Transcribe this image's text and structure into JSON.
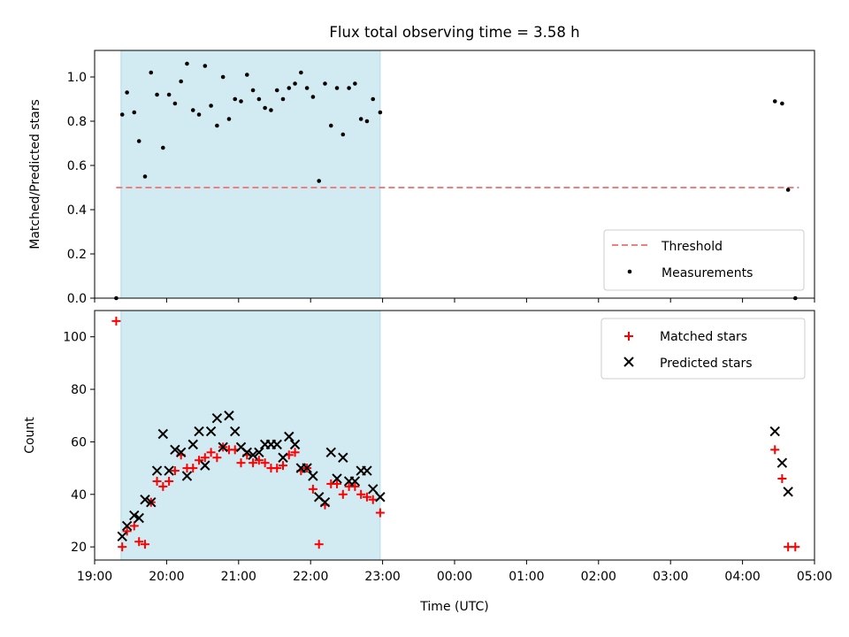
{
  "figure_title": "Flux total observing time = 3.58 h",
  "chart_data": [
    {
      "type": "scatter",
      "id": "ratio",
      "title": "Flux total observing time = 3.58 h",
      "ylabel": "Matched/Predicted stars",
      "xlabel": "",
      "x_unit": "hours since 00:00 UTC (values above 24 are next day)",
      "xlim": [
        "19:00",
        "05:00"
      ],
      "ylim": [
        0,
        1.12
      ],
      "yticks": [
        "0.0",
        "0.2",
        "0.4",
        "0.6",
        "0.8",
        "1.0"
      ],
      "x_tick_labels_shown": false,
      "grid": false,
      "legend_position": "lower right",
      "shaded_interval": {
        "from": "19:22",
        "to": "22:58",
        "color": "#add8e6"
      },
      "threshold": {
        "name": "Threshold",
        "value": 0.5,
        "from": "19:18",
        "to": "04:47",
        "style": "dashed",
        "color": "#f08080"
      },
      "series": [
        {
          "name": "Measurements",
          "marker": "point",
          "color": "#000000",
          "points": [
            [
              "19:18",
              0.0
            ],
            [
              "19:23",
              0.83
            ],
            [
              "19:27",
              0.93
            ],
            [
              "19:33",
              0.84
            ],
            [
              "19:37",
              0.71
            ],
            [
              "19:42",
              0.55
            ],
            [
              "19:47",
              1.02
            ],
            [
              "19:52",
              0.92
            ],
            [
              "19:57",
              0.68
            ],
            [
              "20:02",
              0.92
            ],
            [
              "20:07",
              0.88
            ],
            [
              "20:12",
              0.98
            ],
            [
              "20:17",
              1.06
            ],
            [
              "20:22",
              0.85
            ],
            [
              "20:27",
              0.83
            ],
            [
              "20:32",
              1.05
            ],
            [
              "20:37",
              0.87
            ],
            [
              "20:42",
              0.78
            ],
            [
              "20:47",
              1.0
            ],
            [
              "20:52",
              0.81
            ],
            [
              "20:57",
              0.9
            ],
            [
              "21:02",
              0.89
            ],
            [
              "21:07",
              1.01
            ],
            [
              "21:12",
              0.94
            ],
            [
              "21:17",
              0.9
            ],
            [
              "21:22",
              0.86
            ],
            [
              "21:27",
              0.85
            ],
            [
              "21:32",
              0.94
            ],
            [
              "21:37",
              0.9
            ],
            [
              "21:42",
              0.95
            ],
            [
              "21:47",
              0.97
            ],
            [
              "21:52",
              1.02
            ],
            [
              "21:57",
              0.95
            ],
            [
              "22:02",
              0.91
            ],
            [
              "22:07",
              0.53
            ],
            [
              "22:12",
              0.97
            ],
            [
              "22:17",
              0.78
            ],
            [
              "22:22",
              0.95
            ],
            [
              "22:27",
              0.74
            ],
            [
              "22:32",
              0.95
            ],
            [
              "22:37",
              0.97
            ],
            [
              "22:42",
              0.81
            ],
            [
              "22:47",
              0.8
            ],
            [
              "22:52",
              0.9
            ],
            [
              "22:58",
              0.84
            ],
            [
              "04:27",
              0.89
            ],
            [
              "04:33",
              0.88
            ],
            [
              "04:38",
              0.49
            ],
            [
              "04:44",
              0.0
            ]
          ]
        }
      ]
    },
    {
      "type": "scatter",
      "id": "counts",
      "title": "",
      "ylabel": "Count",
      "xlabel": "Time (UTC)",
      "x_unit": "hours since 00:00 UTC (values above 24 are next day)",
      "xlim": [
        "19:00",
        "05:00"
      ],
      "ylim": [
        15,
        110
      ],
      "yticks": [
        "20",
        "40",
        "60",
        "80",
        "100"
      ],
      "xticks": [
        "19:00",
        "20:00",
        "21:00",
        "22:00",
        "23:00",
        "00:00",
        "01:00",
        "02:00",
        "03:00",
        "04:00",
        "05:00"
      ],
      "grid": false,
      "legend_position": "upper right",
      "shaded_interval": {
        "from": "19:22",
        "to": "22:58",
        "color": "#add8e6"
      },
      "series": [
        {
          "name": "Matched stars",
          "marker": "plus",
          "color": "#ff0000",
          "points": [
            [
              "19:18",
              106
            ],
            [
              "19:23",
              20
            ],
            [
              "19:27",
              26
            ],
            [
              "19:33",
              28
            ],
            [
              "19:37",
              22
            ],
            [
              "19:42",
              21
            ],
            [
              "19:47",
              37
            ],
            [
              "19:52",
              45
            ],
            [
              "19:57",
              43
            ],
            [
              "20:02",
              45
            ],
            [
              "20:07",
              49
            ],
            [
              "20:12",
              55
            ],
            [
              "20:17",
              50
            ],
            [
              "20:22",
              50
            ],
            [
              "20:27",
              53
            ],
            [
              "20:32",
              54
            ],
            [
              "20:37",
              56
            ],
            [
              "20:42",
              54
            ],
            [
              "20:47",
              58
            ],
            [
              "20:52",
              57
            ],
            [
              "20:57",
              57
            ],
            [
              "21:02",
              52
            ],
            [
              "21:07",
              55
            ],
            [
              "21:12",
              52
            ],
            [
              "21:17",
              53
            ],
            [
              "21:22",
              52
            ],
            [
              "21:27",
              50
            ],
            [
              "21:32",
              50
            ],
            [
              "21:37",
              51
            ],
            [
              "21:42",
              55
            ],
            [
              "21:47",
              56
            ],
            [
              "21:52",
              49
            ],
            [
              "21:57",
              50
            ],
            [
              "22:02",
              42
            ],
            [
              "22:07",
              21
            ],
            [
              "22:12",
              36
            ],
            [
              "22:17",
              44
            ],
            [
              "22:22",
              44
            ],
            [
              "22:27",
              40
            ],
            [
              "22:32",
              43
            ],
            [
              "22:37",
              43
            ],
            [
              "22:42",
              40
            ],
            [
              "22:47",
              39
            ],
            [
              "22:52",
              38
            ],
            [
              "22:58",
              33
            ],
            [
              "04:27",
              57
            ],
            [
              "04:33",
              46
            ],
            [
              "04:38",
              20
            ],
            [
              "04:44",
              20
            ]
          ]
        },
        {
          "name": "Predicted stars",
          "marker": "x",
          "color": "#000000",
          "points": [
            [
              "19:23",
              24
            ],
            [
              "19:27",
              28
            ],
            [
              "19:33",
              32
            ],
            [
              "19:37",
              31
            ],
            [
              "19:42",
              38
            ],
            [
              "19:47",
              37
            ],
            [
              "19:52",
              49
            ],
            [
              "19:57",
              63
            ],
            [
              "20:02",
              49
            ],
            [
              "20:07",
              57
            ],
            [
              "20:12",
              56
            ],
            [
              "20:17",
              47
            ],
            [
              "20:22",
              59
            ],
            [
              "20:27",
              64
            ],
            [
              "20:32",
              51
            ],
            [
              "20:37",
              64
            ],
            [
              "20:42",
              69
            ],
            [
              "20:47",
              58
            ],
            [
              "20:52",
              70
            ],
            [
              "20:57",
              64
            ],
            [
              "21:02",
              58
            ],
            [
              "21:07",
              56
            ],
            [
              "21:12",
              55
            ],
            [
              "21:17",
              56
            ],
            [
              "21:22",
              59
            ],
            [
              "21:27",
              59
            ],
            [
              "21:32",
              59
            ],
            [
              "21:37",
              54
            ],
            [
              "21:42",
              62
            ],
            [
              "21:47",
              59
            ],
            [
              "21:52",
              50
            ],
            [
              "21:57",
              50
            ],
            [
              "22:02",
              47
            ],
            [
              "22:07",
              39
            ],
            [
              "22:12",
              37
            ],
            [
              "22:17",
              56
            ],
            [
              "22:22",
              46
            ],
            [
              "22:27",
              54
            ],
            [
              "22:32",
              45
            ],
            [
              "22:37",
              45
            ],
            [
              "22:42",
              49
            ],
            [
              "22:47",
              49
            ],
            [
              "22:52",
              42
            ],
            [
              "22:58",
              39
            ],
            [
              "04:27",
              64
            ],
            [
              "04:33",
              52
            ],
            [
              "04:38",
              41
            ]
          ]
        }
      ]
    }
  ]
}
